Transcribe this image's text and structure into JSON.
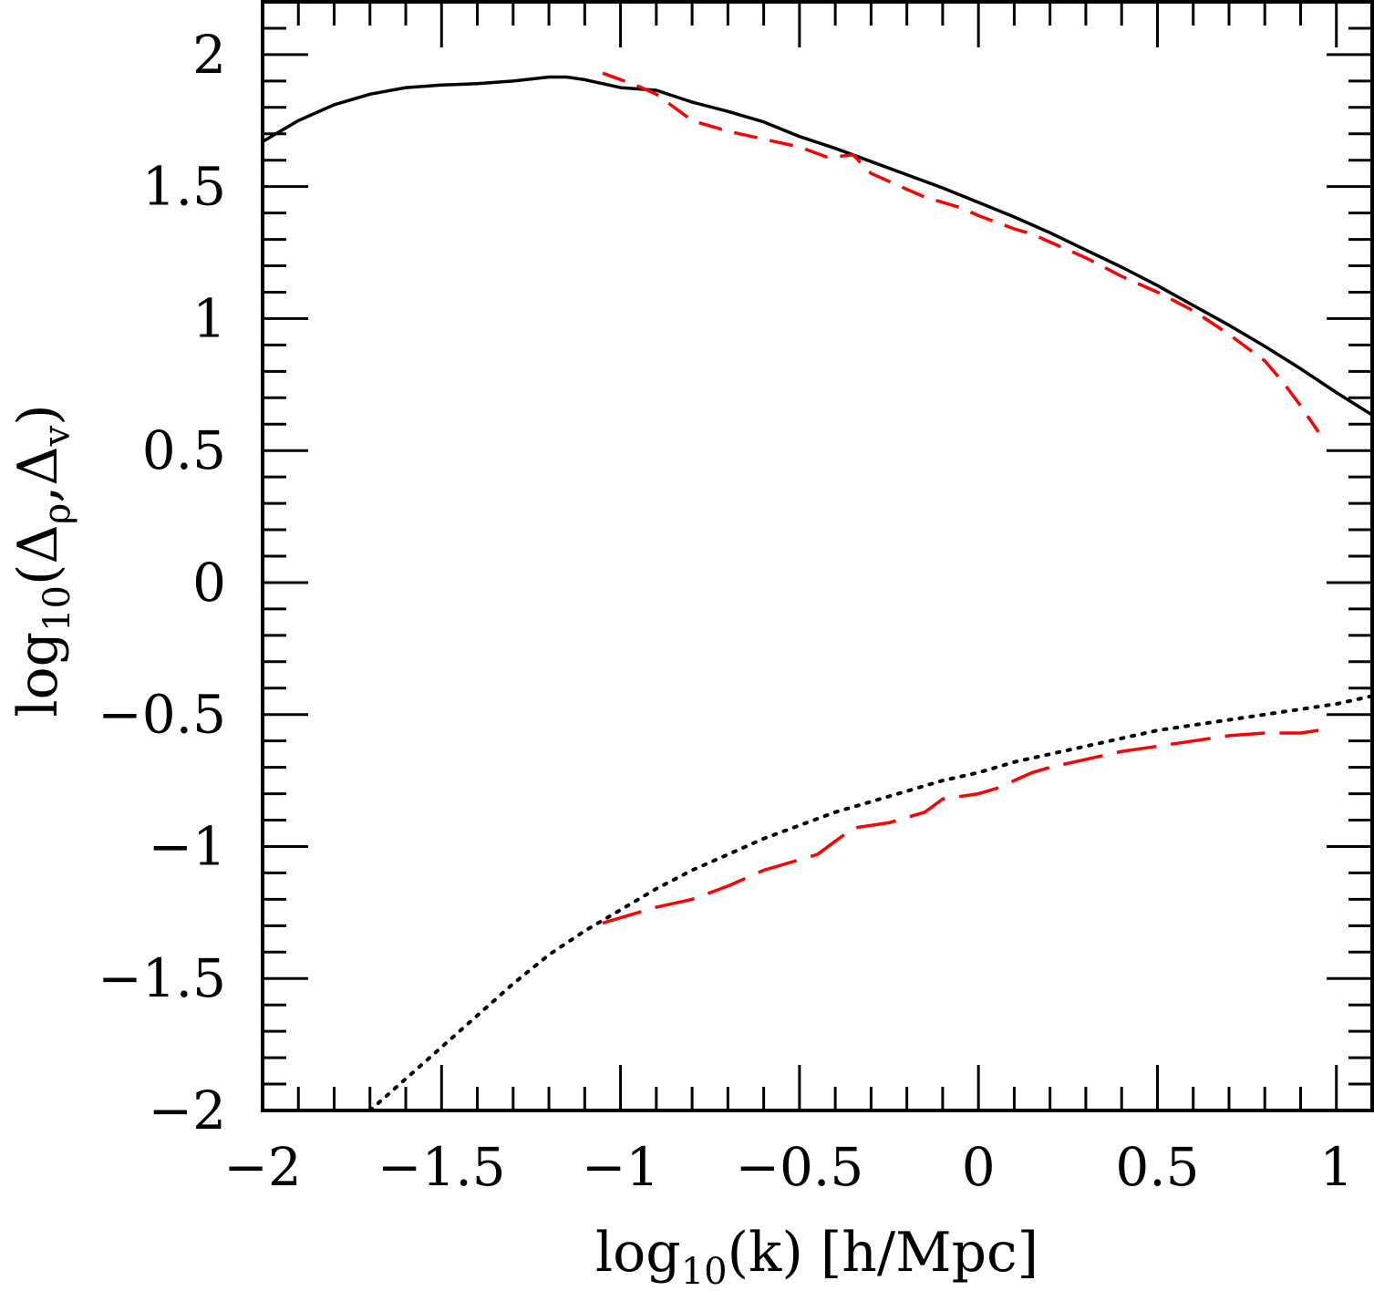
{
  "chart_data": {
    "type": "line",
    "title": "",
    "xlabel": "log10(k) [h/Mpc]",
    "xlabel_parts": {
      "pre": "log",
      "sub": "10",
      "post": "(k)  [h/Mpc]"
    },
    "ylabel": "log10(Δρ,Δv)",
    "ylabel_parts": {
      "pre": "log",
      "sub": "10",
      "mid": "(Δ",
      "sub2": "ρ",
      "comma": ",Δ",
      "sub3": "v",
      "post": ")"
    },
    "xlim": [
      -2,
      1.1
    ],
    "ylim": [
      -2,
      2.2
    ],
    "x_ticks": [
      -2,
      -1.5,
      -1,
      -0.5,
      0,
      0.5,
      1
    ],
    "x_tick_labels": [
      "−2",
      "−1.5",
      "−1",
      "−0.5",
      "0",
      "0.5",
      "1"
    ],
    "y_ticks": [
      -2,
      -1.5,
      -1,
      -0.5,
      0,
      0.5,
      1,
      1.5,
      2
    ],
    "y_tick_labels": [
      "−2",
      "−1.5",
      "−1",
      "−0.5",
      "0",
      "0.5",
      "1",
      "1.5",
      "2"
    ],
    "x_minor_step": 0.1,
    "y_minor_step": 0.1,
    "grid": false,
    "legend": "none",
    "series": [
      {
        "style": "solid",
        "color": "#000000",
        "x": [
          -2.0,
          -1.9,
          -1.8,
          -1.7,
          -1.6,
          -1.5,
          -1.4,
          -1.3,
          -1.2,
          -1.15,
          -1.1,
          -1.0,
          -0.9,
          -0.8,
          -0.7,
          -0.6,
          -0.5,
          -0.4,
          -0.3,
          -0.2,
          -0.1,
          0.0,
          0.1,
          0.2,
          0.3,
          0.4,
          0.5,
          0.6,
          0.7,
          0.8,
          0.9,
          1.0,
          1.1
        ],
        "y": [
          1.67,
          1.75,
          1.81,
          1.85,
          1.875,
          1.885,
          1.89,
          1.9,
          1.915,
          1.915,
          1.905,
          1.875,
          1.865,
          1.82,
          1.785,
          1.745,
          1.69,
          1.645,
          1.595,
          1.545,
          1.495,
          1.44,
          1.385,
          1.325,
          1.26,
          1.195,
          1.125,
          1.05,
          0.975,
          0.895,
          0.81,
          0.72,
          0.635
        ]
      },
      {
        "style": "short-dash",
        "color": "#ff0000",
        "x": [
          -1.05,
          -0.95,
          -0.9,
          -0.8,
          -0.7,
          -0.6,
          -0.5,
          -0.42,
          -0.35,
          -0.3,
          -0.2,
          -0.15,
          -0.05,
          0.0,
          0.1,
          0.15,
          0.2,
          0.3,
          0.4,
          0.5,
          0.6,
          0.7,
          0.8,
          0.85,
          0.9,
          0.95
        ],
        "y": [
          1.93,
          1.88,
          1.85,
          1.75,
          1.71,
          1.68,
          1.65,
          1.61,
          1.62,
          1.55,
          1.49,
          1.46,
          1.42,
          1.39,
          1.34,
          1.32,
          1.29,
          1.23,
          1.16,
          1.1,
          1.03,
          0.94,
          0.84,
          0.76,
          0.67,
          0.57
        ]
      },
      {
        "style": "dotted",
        "color": "#000000",
        "x": [
          -1.7,
          -1.6,
          -1.5,
          -1.4,
          -1.3,
          -1.2,
          -1.1,
          -1.0,
          -0.9,
          -0.8,
          -0.7,
          -0.6,
          -0.5,
          -0.4,
          -0.3,
          -0.2,
          -0.1,
          0.0,
          0.1,
          0.2,
          0.3,
          0.4,
          0.5,
          0.6,
          0.7,
          0.8,
          0.9,
          1.0,
          1.1
        ],
        "y": [
          -2.0,
          -1.88,
          -1.76,
          -1.64,
          -1.52,
          -1.41,
          -1.32,
          -1.24,
          -1.16,
          -1.09,
          -1.03,
          -0.97,
          -0.92,
          -0.87,
          -0.83,
          -0.79,
          -0.75,
          -0.72,
          -0.68,
          -0.65,
          -0.62,
          -0.59,
          -0.56,
          -0.54,
          -0.52,
          -0.5,
          -0.48,
          -0.46,
          -0.43
        ]
      },
      {
        "style": "long-dash",
        "color": "#ff0000",
        "x": [
          -1.05,
          -0.9,
          -0.8,
          -0.7,
          -0.6,
          -0.45,
          -0.4,
          -0.35,
          -0.25,
          -0.15,
          -0.1,
          0.0,
          0.05,
          0.1,
          0.15,
          0.2,
          0.3,
          0.4,
          0.5,
          0.6,
          0.7,
          0.8,
          0.9,
          0.95
        ],
        "y": [
          -1.29,
          -1.23,
          -1.2,
          -1.15,
          -1.09,
          -1.03,
          -0.98,
          -0.93,
          -0.91,
          -0.87,
          -0.82,
          -0.8,
          -0.78,
          -0.75,
          -0.72,
          -0.7,
          -0.67,
          -0.64,
          -0.62,
          -0.6,
          -0.58,
          -0.57,
          -0.57,
          -0.56
        ]
      }
    ]
  }
}
